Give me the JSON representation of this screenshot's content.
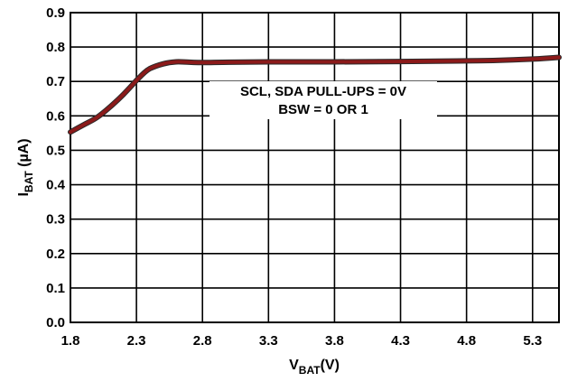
{
  "chart_data": {
    "type": "line",
    "xlabel_main": "V",
    "xlabel_sub": "BAT",
    "xlabel_unit": "(V)",
    "ylabel_main": "I",
    "ylabel_sub": "BAT",
    "ylabel_unit": " (µA)",
    "xlim": [
      1.8,
      5.5
    ],
    "ylim": [
      0.0,
      0.9
    ],
    "xticks": [
      "1.8",
      "2.3",
      "2.8",
      "3.3",
      "3.8",
      "4.3",
      "4.8",
      "5.3"
    ],
    "yticks": [
      "0.0",
      "0.1",
      "0.2",
      "0.3",
      "0.4",
      "0.5",
      "0.6",
      "0.7",
      "0.8",
      "0.9"
    ],
    "grid": true,
    "annotation": [
      "SCL, SDA PULL-UPS = 0V",
      "BSW = 0 OR 1"
    ],
    "series": [
      {
        "color": "#8b1a1a",
        "x": [
          1.8,
          1.9,
          2.0,
          2.1,
          2.2,
          2.3,
          2.35,
          2.4,
          2.5,
          2.6,
          2.7,
          2.8,
          3.0,
          3.3,
          3.8,
          4.3,
          4.8,
          5.0,
          5.3,
          5.5
        ],
        "y": [
          0.553,
          0.574,
          0.595,
          0.626,
          0.662,
          0.703,
          0.722,
          0.737,
          0.751,
          0.757,
          0.756,
          0.755,
          0.756,
          0.757,
          0.757,
          0.758,
          0.76,
          0.761,
          0.765,
          0.77
        ]
      }
    ]
  }
}
